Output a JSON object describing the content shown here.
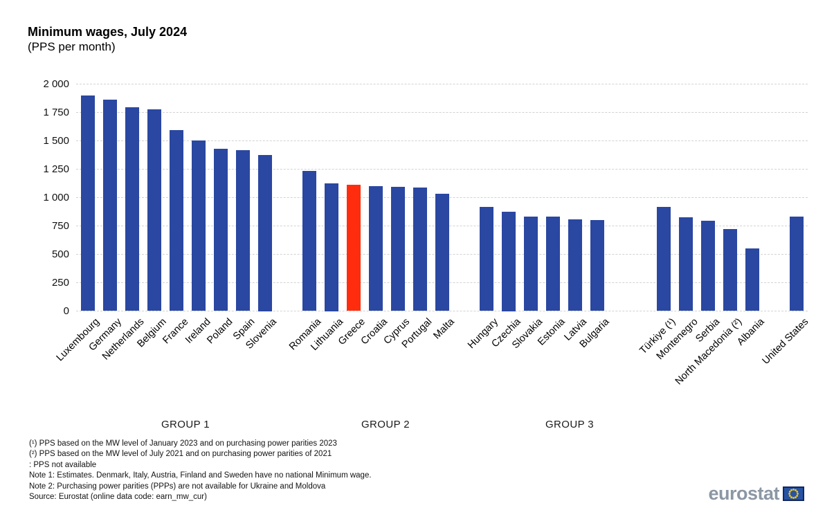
{
  "chart_data": {
    "type": "bar",
    "title": "Minimum wages, July 2024",
    "subtitle": "(PPS per month)",
    "xlabel": "",
    "ylabel": "PPS per month",
    "ylim": [
      0,
      2000
    ],
    "ytick_step": 250,
    "ytick_labels": [
      "0",
      "250",
      "500",
      "750",
      "1 000",
      "1 250",
      "1 500",
      "1 750",
      "2 000"
    ],
    "grid": "horizontal-dashed",
    "legend": "none",
    "colors": {
      "bar": "#2a47a1",
      "highlight": "#ff2d0e",
      "gridline": "#d2d2d2"
    },
    "groups": [
      {
        "label": "GROUP 1",
        "start_slot": 0,
        "bars": [
          {
            "country": "Luxembourg",
            "value": 1900
          },
          {
            "country": "Germany",
            "value": 1865
          },
          {
            "country": "Netherlands",
            "value": 1795
          },
          {
            "country": "Belgium",
            "value": 1780
          },
          {
            "country": "France",
            "value": 1595
          },
          {
            "country": "Ireland",
            "value": 1505
          },
          {
            "country": "Poland",
            "value": 1430
          },
          {
            "country": "Spain",
            "value": 1420
          },
          {
            "country": "Slovenia",
            "value": 1375
          }
        ]
      },
      {
        "label": "GROUP 2",
        "start_slot": 10,
        "bars": [
          {
            "country": "Romania",
            "value": 1235
          },
          {
            "country": "Lithuania",
            "value": 1125
          },
          {
            "country": "Greece",
            "value": 1110,
            "highlight": true
          },
          {
            "country": "Croatia",
            "value": 1100
          },
          {
            "country": "Cyprus",
            "value": 1095
          },
          {
            "country": "Portugal",
            "value": 1090
          },
          {
            "country": "Malta",
            "value": 1035
          }
        ]
      },
      {
        "label": "GROUP 3",
        "start_slot": 18,
        "bars": [
          {
            "country": "Hungary",
            "value": 920
          },
          {
            "country": "Czechia",
            "value": 875
          },
          {
            "country": "Slovakia",
            "value": 835
          },
          {
            "country": "Estonia",
            "value": 830
          },
          {
            "country": "Latvia",
            "value": 805
          },
          {
            "country": "Bulgaria",
            "value": 800
          }
        ]
      },
      {
        "label": "",
        "start_slot": 26,
        "bars": [
          {
            "country": "Türkiye (¹)",
            "value": 915
          },
          {
            "country": "Montenegro",
            "value": 825
          },
          {
            "country": "Serbia",
            "value": 795
          },
          {
            "country": "North Macedonia (²)",
            "value": 725
          },
          {
            "country": "Albania",
            "value": 550
          }
        ]
      },
      {
        "label": "",
        "start_slot": 32,
        "bars": [
          {
            "country": "United States",
            "value": 830
          }
        ]
      }
    ],
    "group_label_x": [
      268,
      557,
      823
    ]
  },
  "footnotes": [
    "(¹) PPS based on the MW level of January 2023  and on  purchasing power parities 2023",
    "(²) PPS based on the MW level of July 2021  and on purchasing power parities of 2021",
    ":  PPS not available",
    "Note 1: Estimates. Denmark, Italy, Austria, Finland and Sweden have no national Minimum wage.",
    "Note 2: Purchasing power parities (PPPs) are not available for Ukraine and Moldova",
    "Source: Eurostat (online data code: earn_mw_cur)"
  ],
  "logo": {
    "text": "eurostat"
  }
}
